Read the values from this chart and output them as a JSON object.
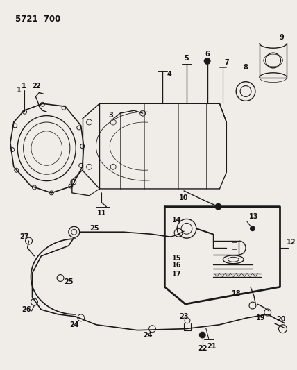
{
  "title": "5721  700",
  "bg_color": "#f0ede8",
  "line_color": "#1a1a1a",
  "label_color": "#111111",
  "figsize": [
    4.28,
    5.33
  ],
  "dpi": 100
}
